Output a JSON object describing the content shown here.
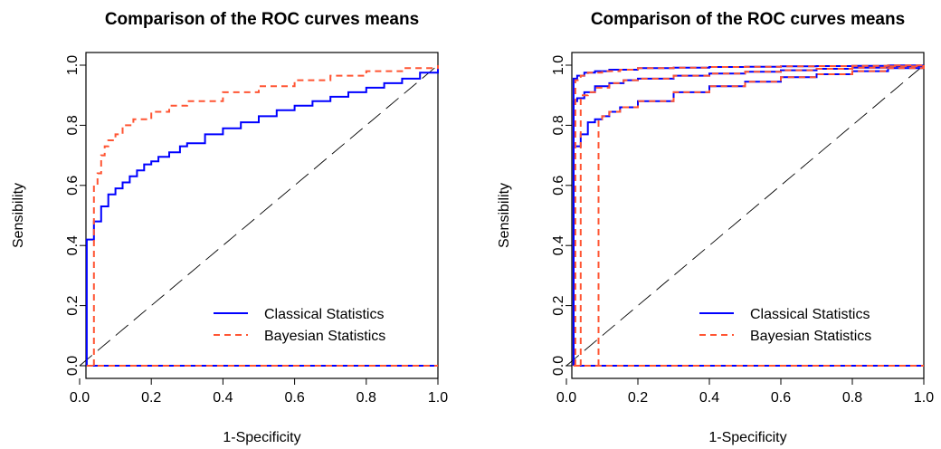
{
  "chart_data": [
    {
      "type": "line",
      "title": "Comparison of the ROC curves means",
      "xlabel": "1-Specificity",
      "ylabel": "Sensibility",
      "xlim": [
        0,
        1
      ],
      "ylim": [
        0,
        1
      ],
      "xticks": [
        "0.0",
        "0.2",
        "0.4",
        "0.6",
        "0.8",
        "1.0"
      ],
      "yticks": [
        "0.0",
        "0.2",
        "0.4",
        "0.6",
        "0.8",
        "1.0"
      ],
      "grid": false,
      "legend_position": "bottom-right",
      "reference_line": {
        "x": [
          0,
          1
        ],
        "y": [
          0,
          1
        ],
        "color": "#000000",
        "style": "long-dash"
      },
      "series": [
        {
          "name": "Classical Statistics",
          "color": "#0000ff",
          "style": "solid",
          "curves": [
            {
              "x": [
                0.02,
                0.02,
                0.04,
                0.04,
                0.06,
                0.06,
                0.08,
                0.1,
                0.12,
                0.14,
                0.16,
                0.18,
                0.2,
                0.22,
                0.25,
                0.28,
                0.3,
                0.35,
                0.4,
                0.45,
                0.5,
                0.55,
                0.6,
                0.65,
                0.7,
                0.75,
                0.8,
                0.85,
                0.9,
                0.95,
                1.0
              ],
              "y": [
                0.0,
                0.42,
                0.42,
                0.48,
                0.5,
                0.53,
                0.57,
                0.59,
                0.61,
                0.63,
                0.65,
                0.67,
                0.68,
                0.695,
                0.71,
                0.73,
                0.74,
                0.77,
                0.79,
                0.81,
                0.83,
                0.85,
                0.865,
                0.88,
                0.895,
                0.91,
                0.925,
                0.94,
                0.955,
                0.975,
                1.0
              ]
            },
            {
              "x": [
                0.02,
                1.0
              ],
              "y": [
                0.0,
                0.0
              ]
            }
          ]
        },
        {
          "name": "Bayesian Statistics",
          "color": "#ff5533",
          "style": "dashed",
          "curves": [
            {
              "x": [
                0.04,
                0.04,
                0.05,
                0.05,
                0.06,
                0.07,
                0.08,
                0.1,
                0.12,
                0.15,
                0.2,
                0.25,
                0.3,
                0.4,
                0.5,
                0.6,
                0.7,
                0.8,
                0.9,
                1.0
              ],
              "y": [
                0.0,
                0.6,
                0.6,
                0.64,
                0.7,
                0.73,
                0.75,
                0.77,
                0.8,
                0.82,
                0.845,
                0.865,
                0.88,
                0.91,
                0.93,
                0.95,
                0.965,
                0.98,
                0.99,
                1.0
              ]
            },
            {
              "x": [
                0.02,
                1.0
              ],
              "y": [
                0.0,
                0.0
              ]
            }
          ]
        }
      ]
    },
    {
      "type": "line",
      "title": "Comparison of the ROC curves means",
      "xlabel": "1-Specificity",
      "ylabel": "Sensibility",
      "xlim": [
        0,
        1
      ],
      "ylim": [
        0,
        1
      ],
      "xticks": [
        "0.0",
        "0.2",
        "0.4",
        "0.6",
        "0.8",
        "1.0"
      ],
      "yticks": [
        "0.0",
        "0.2",
        "0.4",
        "0.6",
        "0.8",
        "1.0"
      ],
      "grid": false,
      "legend_position": "bottom-right",
      "reference_line": {
        "x": [
          0,
          1
        ],
        "y": [
          0,
          1
        ],
        "color": "#000000",
        "style": "long-dash"
      },
      "series": [
        {
          "name": "Classical Statistics",
          "color": "#0000ff",
          "style": "solid",
          "curves": [
            {
              "x": [
                0.02,
                0.02,
                0.03,
                0.05,
                0.08,
                0.12,
                0.2,
                0.3,
                0.4,
                0.5,
                0.6,
                0.7,
                0.8,
                0.9,
                1.0
              ],
              "y": [
                0.0,
                0.955,
                0.965,
                0.975,
                0.98,
                0.985,
                0.99,
                0.992,
                0.994,
                0.995,
                0.996,
                0.997,
                0.998,
                0.999,
                1.0
              ]
            },
            {
              "x": [
                0.02,
                0.02,
                0.03,
                0.05,
                0.08,
                0.12,
                0.16,
                0.2,
                0.3,
                0.4,
                0.5,
                0.6,
                0.7,
                0.8,
                0.9,
                1.0
              ],
              "y": [
                0.0,
                0.88,
                0.89,
                0.91,
                0.93,
                0.94,
                0.95,
                0.955,
                0.965,
                0.972,
                0.978,
                0.983,
                0.988,
                0.992,
                0.996,
                1.0
              ]
            },
            {
              "x": [
                0.02,
                0.02,
                0.04,
                0.04,
                0.06,
                0.06,
                0.08,
                0.1,
                0.12,
                0.15,
                0.2,
                0.3,
                0.4,
                0.5,
                0.6,
                0.7,
                0.8,
                0.9,
                1.0
              ],
              "y": [
                0.0,
                0.73,
                0.73,
                0.77,
                0.79,
                0.81,
                0.82,
                0.83,
                0.845,
                0.86,
                0.88,
                0.91,
                0.93,
                0.945,
                0.96,
                0.97,
                0.98,
                0.99,
                1.0
              ]
            },
            {
              "x": [
                0.02,
                1.0
              ],
              "y": [
                0.0,
                0.0
              ]
            }
          ]
        },
        {
          "name": "Bayesian Statistics",
          "color": "#ff5533",
          "style": "dashed",
          "curves": [
            {
              "x": [
                0.025,
                0.025,
                0.04,
                0.06,
                0.1,
                0.15,
                0.2,
                0.3,
                0.4,
                0.5,
                0.6,
                0.7,
                0.8,
                0.9,
                1.0
              ],
              "y": [
                0.0,
                0.95,
                0.965,
                0.975,
                0.98,
                0.985,
                0.99,
                0.992,
                0.994,
                0.995,
                0.996,
                0.997,
                0.998,
                0.999,
                1.0
              ]
            },
            {
              "x": [
                0.04,
                0.04,
                0.06,
                0.08,
                0.12,
                0.16,
                0.2,
                0.3,
                0.4,
                0.5,
                0.6,
                0.7,
                0.8,
                0.9,
                1.0
              ],
              "y": [
                0.0,
                0.9,
                0.91,
                0.925,
                0.94,
                0.95,
                0.955,
                0.965,
                0.972,
                0.978,
                0.983,
                0.988,
                0.992,
                0.996,
                1.0
              ]
            },
            {
              "x": [
                0.09,
                0.09,
                0.1,
                0.12,
                0.15,
                0.2,
                0.3,
                0.4,
                0.5,
                0.6,
                0.7,
                0.8,
                0.9,
                1.0
              ],
              "y": [
                0.0,
                0.82,
                0.83,
                0.845,
                0.86,
                0.88,
                0.91,
                0.93,
                0.945,
                0.96,
                0.97,
                0.98,
                0.99,
                1.0
              ]
            },
            {
              "x": [
                0.02,
                1.0
              ],
              "y": [
                0.0,
                0.0
              ]
            }
          ]
        }
      ]
    }
  ]
}
